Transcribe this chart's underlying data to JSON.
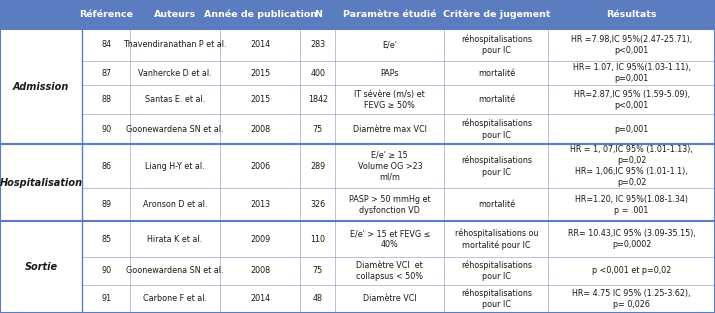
{
  "header_bg": "#5B7DBF",
  "header_text_color": "#FFFFFF",
  "header_fontsize": 6.8,
  "row_text_color": "#1a1a1a",
  "row_fontsize": 5.8,
  "group_fontsize": 7.0,
  "border_color": "#5B7DBF",
  "line_color": "#99AACC",
  "group_sep_color": "#5B7DBF",
  "columns": [
    "Référence",
    "Auteurs",
    "Année de publication",
    "N",
    "Paramètre étudié",
    "Critère de jugement",
    "Résultats"
  ],
  "groups": [
    {
      "name": "Admission",
      "rows": [
        0,
        1,
        2,
        3
      ]
    },
    {
      "name": "Hospitalisation",
      "rows": [
        4,
        5
      ]
    },
    {
      "name": "Sortie",
      "rows": [
        6,
        7,
        8
      ]
    }
  ],
  "rows": [
    {
      "ref": "84",
      "auteur": "Thavendiranathan P et al.",
      "annee": "2014",
      "n": "283",
      "parametre": "E/e'",
      "critere": "réhospitalisations\npour IC",
      "resultat": "HR =7.98,IC 95%(2.47-25.71),\np<0,001"
    },
    {
      "ref": "87",
      "auteur": "Vanhercke D et al.",
      "annee": "2015",
      "n": "400",
      "parametre": "PAPs",
      "critere": "mortalité",
      "resultat": "HR= 1.07, IC 95%(1.03-1.11),\np=0,001"
    },
    {
      "ref": "88",
      "auteur": "Santas E. et al.",
      "annee": "2015",
      "n": "1842",
      "parametre": "IT sévère (m/s) et\nFEVG ≥ 50%",
      "critere": "mortalité",
      "resultat": "HR=2.87,IC 95% (1.59-5.09),\np<0,001"
    },
    {
      "ref": "90",
      "auteur": "Goonewardena SN et al.",
      "annee": "2008",
      "n": "75",
      "parametre": "Diamètre max VCI",
      "critere": "réhospitalisations\npour IC",
      "resultat": "p=0,001"
    },
    {
      "ref": "86",
      "auteur": "Liang H-Y et al.",
      "annee": "2006",
      "n": "289",
      "parametre": "E/e' ≥ 15\nVolume OG >23\nml/m",
      "critere": "réhospitalisations\npour IC",
      "resultat": "HR = 1, 07,IC 95% (1.01-1.13),\np=0,02\nHR= 1,06,IC 95% (1.01-1.1),\np=0,02"
    },
    {
      "ref": "89",
      "auteur": "Aronson D et al.",
      "annee": "2013",
      "n": "326",
      "parametre": "PASP > 50 mmHg et\ndysfonction VD",
      "critere": "mortalité",
      "resultat": "HR=1.20, IC 95%(1.08-1.34)\np = .001"
    },
    {
      "ref": "85",
      "auteur": "Hirata K et al.",
      "annee": "2009",
      "n": "110",
      "parametre": "E/e' > 15 et FEVG ≤\n40%",
      "critere": "réhospitalisations ou\nmortalité pour IC",
      "resultat": "RR= 10.43,IC 95% (3.09-35.15),\np=0,0002"
    },
    {
      "ref": "90",
      "auteur": "Goonewardena SN et al.",
      "annee": "2008",
      "n": "75",
      "parametre": "Diamètre VCI  et\ncollapsus < 50%",
      "critere": "réhospitalisations\npour IC",
      "resultat": "p <0,001 et p=0,02"
    },
    {
      "ref": "91",
      "auteur": "Carbone F et al.",
      "annee": "2014",
      "n": "48",
      "parametre": "Diamètre VCI",
      "critere": "réhospitalisations\npour IC",
      "resultat": "HR= 4.75 IC 95% (1.25-3.62),\np= 0,026"
    }
  ],
  "figsize": [
    7.15,
    3.13
  ],
  "dpi": 100
}
